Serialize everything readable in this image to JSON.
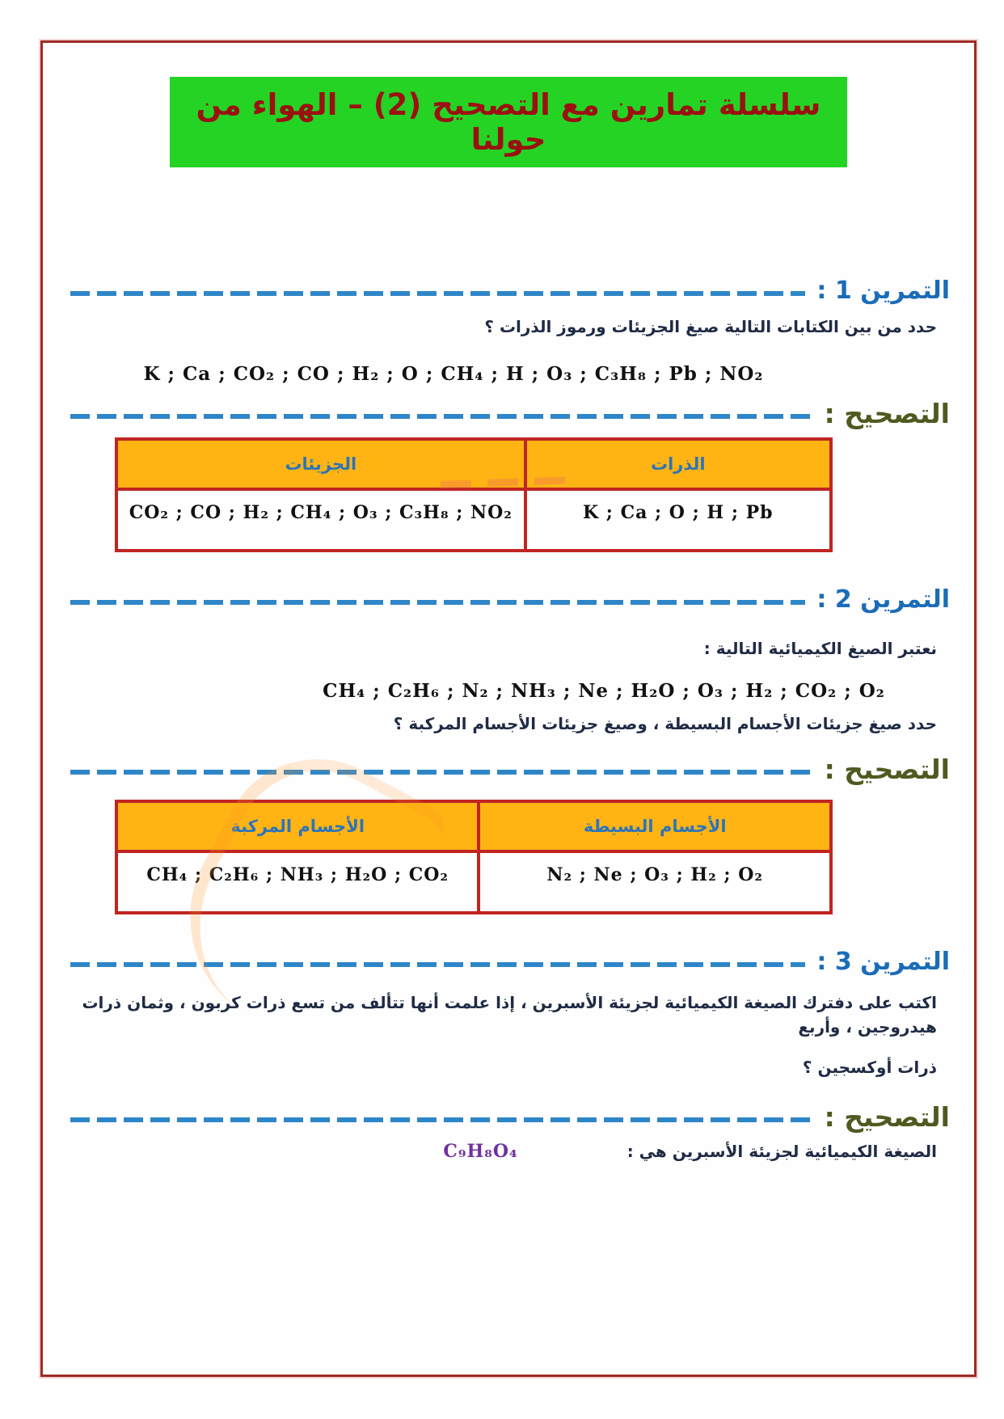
{
  "page": {
    "title": "سلسلة تمارين مع التصحيح (2) – الهواء من حولنا"
  },
  "colors": {
    "title_bg": "#25d325",
    "title_text": "#9b1111",
    "exercise_heading_blue": "#1a6cb8",
    "dashed_line_blue": "#2e86c8",
    "correction_heading_green": "#4e5a20",
    "table_border_red": "#c12522",
    "table_header_bg": "#ffb414",
    "table_header_text": "#2d74b8",
    "page_border": "#9e2b25",
    "answer_formula_purple": "#7030a0"
  },
  "exercise1": {
    "heading": "التمرين 1 :",
    "question": "حدد من بين الكتابات التالية صيغ الجزيئات ورموز الذرات ؟",
    "formulas": "K ; Ca ; CO₂ ; CO ; H₂ ; O ; CH₄ ; H ; O₃ ; C₃H₈ ; Pb ; NO₂",
    "correction_heading": "التصحيح :",
    "table": {
      "col_right_header": "الذرات",
      "col_left_header": "الجزيئات",
      "col_right_value": "K ; Ca ; O ; H ; Pb",
      "col_left_value": "CO₂ ; CO ; H₂ ; CH₄ ; O₃ ; C₃H₈ ; NO₂"
    }
  },
  "exercise2": {
    "heading": "التمرين 2 :",
    "intro": "نعتبر الصيغ الكيميائية التالية :",
    "formulas": "CH₄ ; C₂H₆ ; N₂ ; NH₃ ; Ne ; H₂O ; O₃ ; H₂ ; CO₂ ; O₂",
    "question": "حدد صيغ جزيئات الأجسام البسيطة ، وصيغ جزيئات الأجسام المركبة ؟",
    "correction_heading": "التصحيح :",
    "table": {
      "col_right_header": "الأجسام البسيطة",
      "col_left_header": "الأجسام المركبة",
      "col_right_value": "N₂ ; Ne ; O₃ ; H₂ ; O₂",
      "col_left_value": "CH₄ ; C₂H₆ ; NH₃ ; H₂O ; CO₂"
    }
  },
  "exercise3": {
    "heading": "التمرين 3 :",
    "question_line1": "اكتب على دفترك الصيغة الكيميائية لجزيئة الأسبرين ، إذا علمت أنها تتألف من تسع ذرات كربون ، وثمان ذرات هيدروجين ، وأربع",
    "question_line2": "ذرات أوكسجين ؟",
    "correction_heading": "التصحيح :",
    "answer_label": "الصيغة الكيميائية لجزيئة الأسبرين هي :",
    "answer_formula": "C₉H₈O₄"
  }
}
